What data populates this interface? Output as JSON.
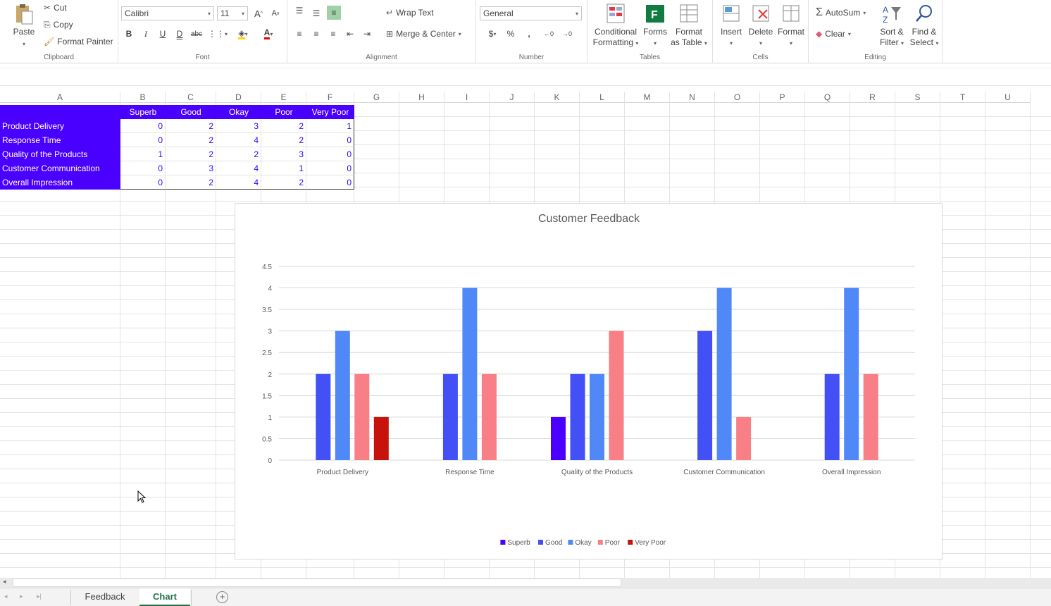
{
  "ribbon": {
    "clipboard": {
      "paste": "Paste",
      "cut": "Cut",
      "copy": "Copy",
      "format_painter": "Format Painter",
      "label": "Clipboard"
    },
    "font": {
      "name": "Calibri",
      "size": "11",
      "label": "Font",
      "grow": "A",
      "shrink": "A"
    },
    "alignment": {
      "wrap_text": "Wrap Text",
      "merge_center": "Merge & Center",
      "label": "Alignment"
    },
    "number": {
      "format": "General",
      "currency": "$",
      "percent": "%",
      "comma": ",",
      "label": "Number"
    },
    "tables": {
      "conditional_1": "Conditional",
      "conditional_2": "Formatting",
      "forms": "Forms",
      "format_table_1": "Format",
      "format_table_2": "as Table",
      "label": "Tables"
    },
    "cells": {
      "insert": "Insert",
      "delete": "Delete",
      "format": "Format",
      "label": "Cells"
    },
    "editing": {
      "autosum": "AutoSum",
      "clear": "Clear",
      "sort_1": "Sort &",
      "sort_2": "Filter",
      "find_1": "Find &",
      "find_2": "Select",
      "label": "Editing"
    }
  },
  "columns": [
    "A",
    "B",
    "C",
    "D",
    "E",
    "F",
    "G",
    "H",
    "I",
    "J",
    "K",
    "L",
    "M",
    "N",
    "O",
    "P",
    "Q",
    "R",
    "S",
    "T",
    "U"
  ],
  "table": {
    "headers": [
      "Superb",
      "Good",
      "Okay",
      "Poor",
      "Very Poor"
    ],
    "rows": [
      {
        "label": "Product Delivery",
        "values": [
          "0",
          "2",
          "3",
          "2",
          "1"
        ]
      },
      {
        "label": "Response Time",
        "values": [
          "0",
          "2",
          "4",
          "2",
          "0"
        ]
      },
      {
        "label": "Quality of the Products",
        "values": [
          "1",
          "2",
          "2",
          "3",
          "0"
        ]
      },
      {
        "label": "Customer Communication",
        "values": [
          "0",
          "3",
          "4",
          "1",
          "0"
        ]
      },
      {
        "label": "Overall Impression",
        "values": [
          "0",
          "2",
          "4",
          "2",
          "0"
        ]
      }
    ]
  },
  "chart_data": {
    "type": "bar",
    "title": "Customer Feedback",
    "categories": [
      "Product Delivery",
      "Response Time",
      "Quality of the Products",
      "Customer Communication",
      "Overall Impression"
    ],
    "series": [
      {
        "name": "Superb",
        "color": "#4b00ff",
        "values": [
          0,
          0,
          1,
          0,
          0
        ]
      },
      {
        "name": "Good",
        "color": "#4250f5",
        "values": [
          2,
          2,
          2,
          3,
          2
        ]
      },
      {
        "name": "Okay",
        "color": "#5089f7",
        "values": [
          3,
          4,
          2,
          4,
          4
        ]
      },
      {
        "name": "Poor",
        "color": "#f77f85",
        "values": [
          2,
          2,
          3,
          1,
          2
        ]
      },
      {
        "name": "Very Poor",
        "color": "#c8120c",
        "values": [
          1,
          0,
          0,
          0,
          0
        ]
      }
    ],
    "ylim": [
      0,
      4.5
    ],
    "yticks": [
      "0",
      "0.5",
      "1",
      "1.5",
      "2",
      "2.5",
      "3",
      "3.5",
      "4",
      "4.5"
    ],
    "grid": true,
    "legend": "bottom"
  },
  "sheets": {
    "tabs": [
      "Feedback",
      "Chart"
    ],
    "active": "Chart"
  },
  "colors": {
    "header_fill": "#4a00ff",
    "number_text": "#3300ff",
    "active_tab": "#217346"
  }
}
